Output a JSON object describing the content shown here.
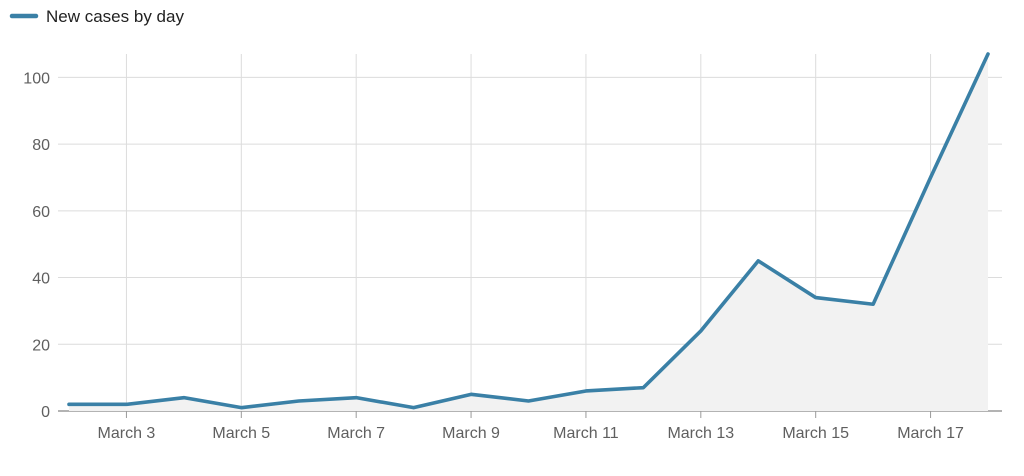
{
  "chart_data": {
    "type": "area",
    "x": [
      "March 2",
      "March 3",
      "March 4",
      "March 5",
      "March 6",
      "March 7",
      "March 8",
      "March 9",
      "March 10",
      "March 11",
      "March 12",
      "March 13",
      "March 14",
      "March 15",
      "March 16",
      "March 17",
      "March 18"
    ],
    "x_tick_labels": [
      "March 3",
      "March 5",
      "March 7",
      "March 9",
      "March 11",
      "March 13",
      "March 15",
      "March 17"
    ],
    "series": [
      {
        "name": "New cases by day",
        "values": [
          2,
          2,
          4,
          1,
          3,
          4,
          1,
          5,
          3,
          6,
          7,
          24,
          45,
          34,
          32,
          70,
          107
        ],
        "color": "#3a80a6"
      }
    ],
    "ylim": [
      0,
      107
    ],
    "yticks": [
      0,
      20,
      40,
      60,
      80,
      100
    ],
    "grid": true,
    "legend_position": "top-left",
    "area_fill_color": "#f2f2f2",
    "grid_color": "#dcdcdc",
    "axis_text_color": "#5f5f5f",
    "legend_text_color": "#222222"
  }
}
